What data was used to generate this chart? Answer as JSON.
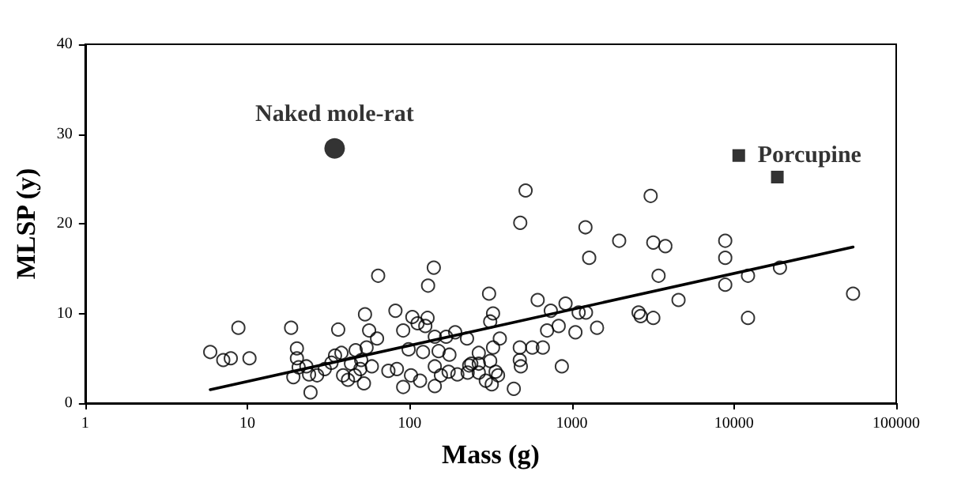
{
  "chart_data": {
    "type": "scatter",
    "xlabel": "Mass (g)",
    "ylabel": "MLSP (y)",
    "log": "x",
    "grid": false,
    "xlim": [
      1,
      100000
    ],
    "xticks": [
      1,
      10,
      100,
      1000,
      10000,
      100000
    ],
    "ylim": [
      0,
      40
    ],
    "yticks": [
      0,
      10,
      20,
      30,
      40
    ],
    "annotations": [
      {
        "text": "Naked mole-rat",
        "x": 34.5,
        "y": 28.4
      },
      {
        "text": "Porcupine",
        "x": 10700,
        "y": 27.6
      }
    ],
    "series": [
      {
        "color": "#000000",
        "marker": "circle",
        "x": [
          5.9,
          7.1,
          7.9,
          8.8,
          10.3,
          18.6,
          20.2,
          20.2,
          20.7,
          19.2,
          23.1,
          24,
          24.5,
          26.9,
          30,
          33,
          34.7,
          36.3,
          38,
          38.9,
          41.7,
          43.5,
          46.5,
          46,
          49.7,
          50.3,
          52.3,
          53.1,
          54.3,
          56.3,
          58.5,
          63,
          64,
          74,
          81.8,
          83.5,
          91.3,
          91.3,
          98.6,
          102,
          104,
          112,
          116,
          121,
          125,
          129,
          130,
          141,
          143,
          143,
          143,
          151,
          156,
          168,
          174,
          191,
          197,
          226,
          228,
          240,
          176,
          233,
          267,
          267,
          267,
          295,
          309,
          314,
          327,
          327,
          314,
          321,
          339,
          351,
          360,
          439,
          478,
          478,
          485,
          481,
          519,
          571,
          616,
          663,
          704,
          742,
          830,
          868,
          915,
          1053,
          1102,
          1223,
          1214,
          1280,
          1431,
          1959,
          2580,
          2660,
          3063,
          3180,
          3180,
          3427,
          3775,
          4550,
          8830,
          8830,
          8830,
          12200,
          12200,
          19200,
          54200
        ],
        "values": [
          5.7,
          4.8,
          5.0,
          8.4,
          5.0,
          8.4,
          6.1,
          5.0,
          4.0,
          2.9,
          4.1,
          3.2,
          1.2,
          3.1,
          3.8,
          4.5,
          5.3,
          8.2,
          5.6,
          3.1,
          2.6,
          4.4,
          5.9,
          3.1,
          3.8,
          4.8,
          2.2,
          9.9,
          6.2,
          8.1,
          4.1,
          7.2,
          14.2,
          3.6,
          10.3,
          3.8,
          8.1,
          1.8,
          6.0,
          3.1,
          9.6,
          8.9,
          2.5,
          5.7,
          8.6,
          9.5,
          13.1,
          15.1,
          7.4,
          4.1,
          1.9,
          5.8,
          3.1,
          7.4,
          3.5,
          7.9,
          3.2,
          7.2,
          3.4,
          4.4,
          5.4,
          4.2,
          5.6,
          4.4,
          3.4,
          2.5,
          12.2,
          9.1,
          10.0,
          6.2,
          4.7,
          2.1,
          3.5,
          3.1,
          7.2,
          1.6,
          6.2,
          4.8,
          4.1,
          20.1,
          23.7,
          6.2,
          11.5,
          6.2,
          8.1,
          10.3,
          8.6,
          4.1,
          11.1,
          7.9,
          10.1,
          10.1,
          19.6,
          16.2,
          8.4,
          18.1,
          10.1,
          9.7,
          23.1,
          9.5,
          17.9,
          14.2,
          17.5,
          11.5,
          18.1,
          16.2,
          13.2,
          14.2,
          9.5,
          15.1,
          12.2
        ]
      },
      {
        "color": "#000000",
        "marker": "circle",
        "x": [
          34.5
        ],
        "values": [
          28.4
        ]
      },
      {
        "color": "#000000",
        "marker": "square",
        "x": [
          10700,
          18500
        ],
        "values": [
          27.6,
          25.2
        ]
      },
      {
        "type": "line",
        "color": "#000000",
        "marker": "none",
        "x": [
          5.9,
          54200
        ],
        "values": [
          1.5,
          17.4
        ]
      }
    ]
  }
}
